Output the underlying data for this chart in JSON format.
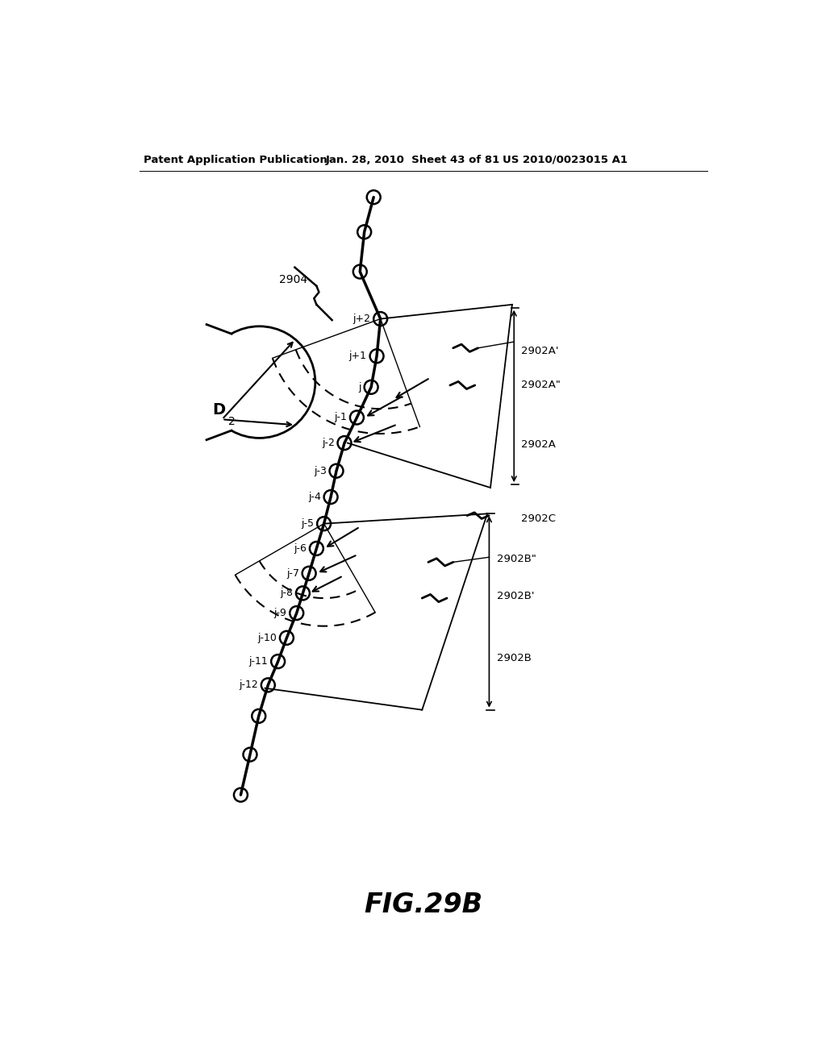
{
  "header_left": "Patent Application Publication",
  "header_mid": "Jan. 28, 2010  Sheet 43 of 81",
  "header_right": "US 2010/0023015 A1",
  "figure_label": "FIG.29B",
  "bg_color": "#ffffff"
}
